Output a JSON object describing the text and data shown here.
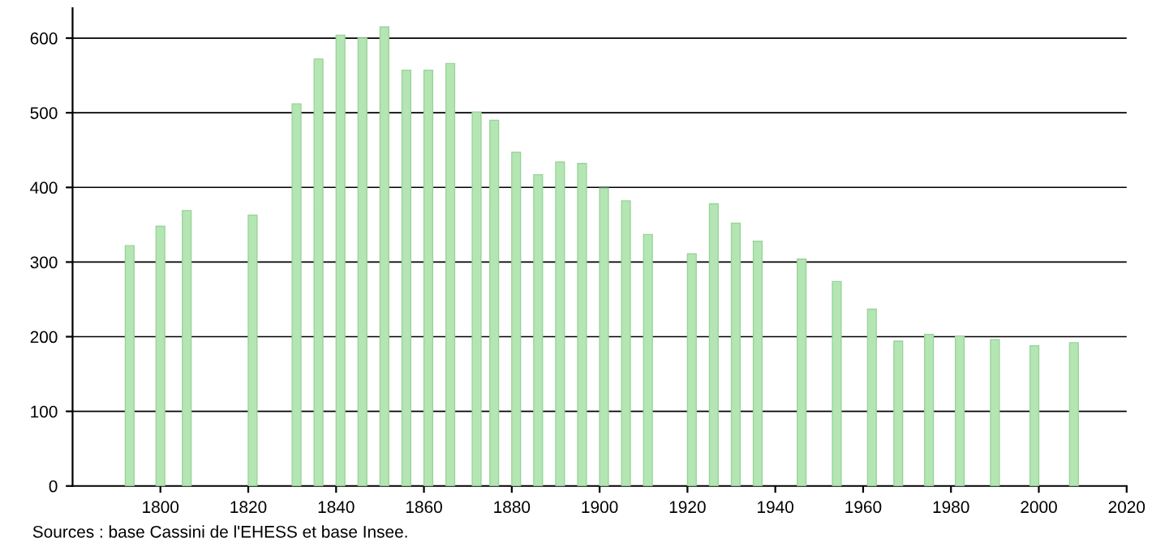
{
  "chart_data": {
    "type": "bar",
    "x": [
      1793,
      1800,
      1806,
      1821,
      1831,
      1836,
      1841,
      1846,
      1851,
      1856,
      1861,
      1866,
      1872,
      1876,
      1881,
      1886,
      1891,
      1896,
      1901,
      1906,
      1911,
      1921,
      1926,
      1931,
      1936,
      1946,
      1954,
      1962,
      1968,
      1975,
      1982,
      1990,
      1999,
      2008
    ],
    "values": [
      322,
      348,
      369,
      363,
      512,
      572,
      604,
      600,
      615,
      557,
      557,
      566,
      501,
      490,
      447,
      417,
      434,
      432,
      399,
      382,
      337,
      311,
      378,
      352,
      328,
      304,
      274,
      237,
      194,
      203,
      201,
      196,
      188,
      192
    ],
    "color": "#b3e6b3",
    "xlim": [
      1780,
      2020
    ],
    "xticks": [
      1800,
      1820,
      1840,
      1860,
      1880,
      1900,
      1920,
      1940,
      1960,
      1980,
      2000,
      2020
    ],
    "ylim": [
      0,
      640
    ],
    "yticks": [
      0,
      100,
      200,
      300,
      400,
      500,
      600
    ],
    "grid": "y",
    "legend": false,
    "annotations": [
      "Sources : base Cassini de l'EHESS et base Insee."
    ]
  }
}
